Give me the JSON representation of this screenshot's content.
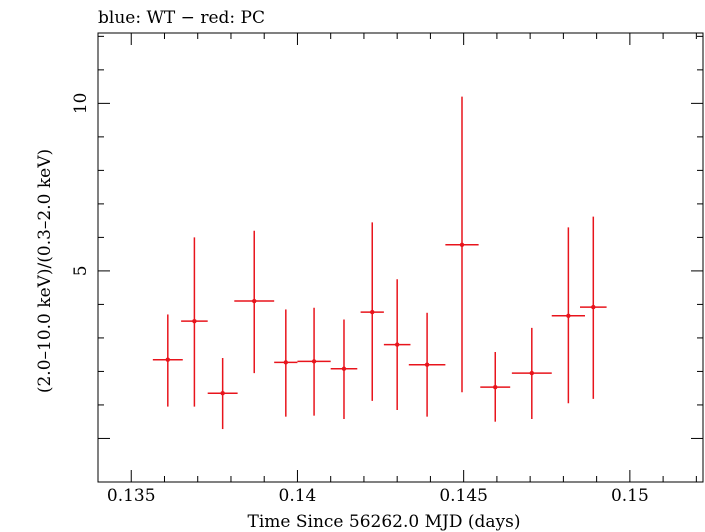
{
  "chart_data": {
    "type": "scatter",
    "title": "blue: WT − red: PC",
    "xlabel": "Time Since 56262.0 MJD (days)",
    "ylabel": "(2.0–10.0 keV)/(0.3–2.0 keV)",
    "xlim": [
      0.134,
      0.1522
    ],
    "ylim": [
      -1.3,
      12.1
    ],
    "x_ticks": [
      0.135,
      0.14,
      0.145,
      0.15
    ],
    "x_tick_labels": [
      "0.135",
      "0.14",
      "0.145",
      "0.15"
    ],
    "y_ticks": [
      5,
      10
    ],
    "y_tick_labels": [
      "5",
      "10"
    ],
    "grid": false,
    "series": [
      {
        "name": "PC",
        "color": "#e8141c",
        "points": [
          {
            "x": 0.1361,
            "y": 2.35,
            "xerr": 0.00045,
            "ylo": 0.95,
            "yhi": 3.7
          },
          {
            "x": 0.1369,
            "y": 3.5,
            "xerr": 0.0004,
            "ylo": 0.95,
            "yhi": 6.0
          },
          {
            "x": 0.13775,
            "y": 1.35,
            "xerr": 0.00045,
            "ylo": 0.28,
            "yhi": 2.4
          },
          {
            "x": 0.1387,
            "y": 4.1,
            "xerr": 0.0006,
            "ylo": 1.95,
            "yhi": 6.2
          },
          {
            "x": 0.13965,
            "y": 2.27,
            "xerr": 0.00035,
            "ylo": 0.65,
            "yhi": 3.85
          },
          {
            "x": 0.1405,
            "y": 2.3,
            "xerr": 0.0005,
            "ylo": 0.68,
            "yhi": 3.9
          },
          {
            "x": 0.1414,
            "y": 2.08,
            "xerr": 0.0004,
            "ylo": 0.58,
            "yhi": 3.55
          },
          {
            "x": 0.14225,
            "y": 3.77,
            "xerr": 0.00035,
            "ylo": 1.12,
            "yhi": 6.45
          },
          {
            "x": 0.143,
            "y": 2.8,
            "xerr": 0.0004,
            "ylo": 0.85,
            "yhi": 4.75
          },
          {
            "x": 0.1439,
            "y": 2.2,
            "xerr": 0.00055,
            "ylo": 0.65,
            "yhi": 3.75
          },
          {
            "x": 0.14495,
            "y": 5.78,
            "xerr": 0.0005,
            "ylo": 1.38,
            "yhi": 10.2
          },
          {
            "x": 0.14595,
            "y": 1.53,
            "xerr": 0.00045,
            "ylo": 0.5,
            "yhi": 2.58
          },
          {
            "x": 0.14705,
            "y": 1.95,
            "xerr": 0.0006,
            "ylo": 0.58,
            "yhi": 3.3
          },
          {
            "x": 0.14815,
            "y": 3.66,
            "xerr": 0.0005,
            "ylo": 1.05,
            "yhi": 6.3
          },
          {
            "x": 0.1489,
            "y": 3.92,
            "xerr": 0.0004,
            "ylo": 1.18,
            "yhi": 6.62
          }
        ]
      }
    ]
  }
}
